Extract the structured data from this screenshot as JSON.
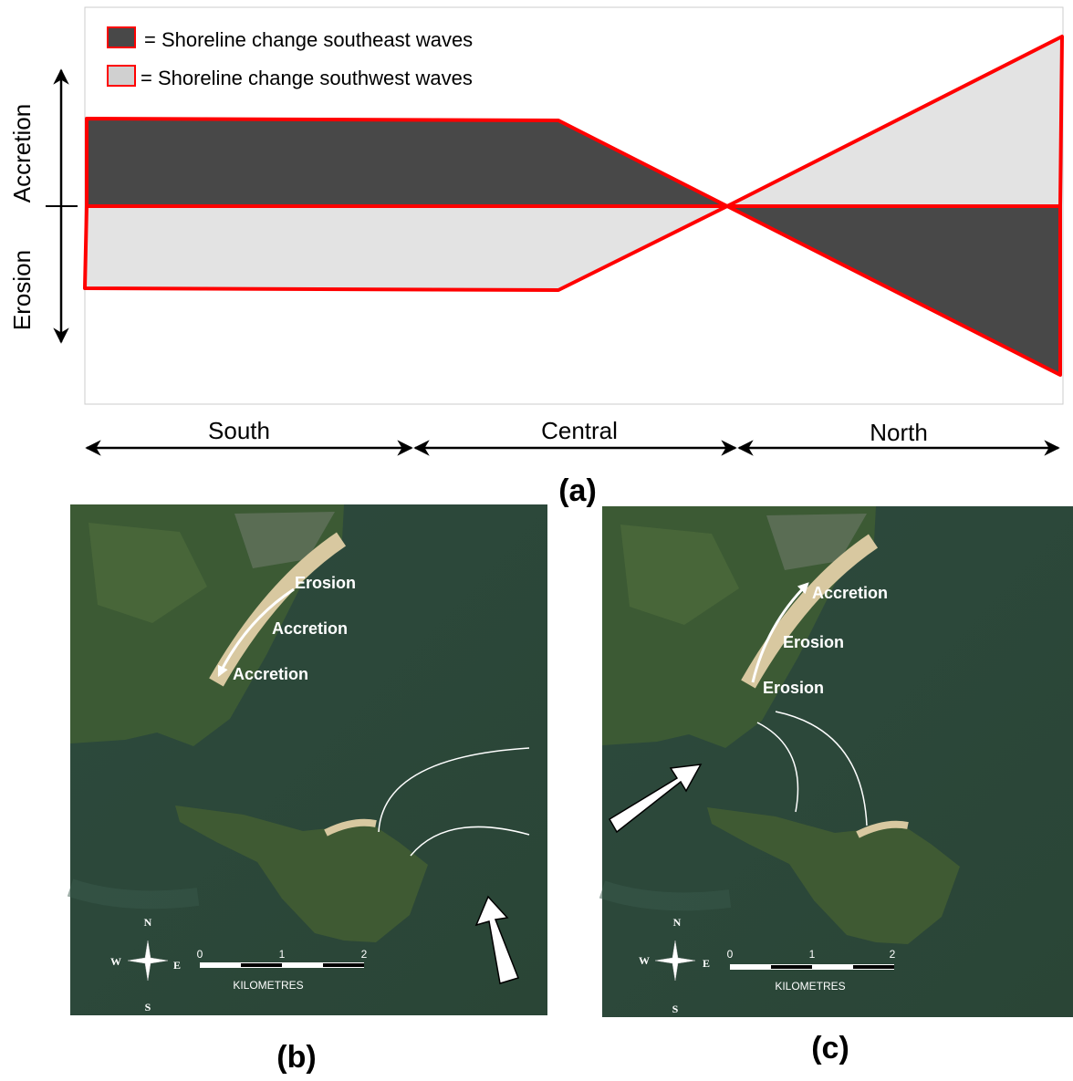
{
  "panel_a": {
    "legend": [
      "=  Shoreline change southeast waves",
      "=  Shoreline change southwest waves"
    ],
    "y_axis": {
      "top": "Accretion",
      "bottom": "Erosion"
    },
    "zones": [
      "South",
      "Central",
      "North"
    ],
    "label": "(a)"
  },
  "panel_b": {
    "annotations": [
      "Erosion",
      "Accretion",
      "Accretion"
    ],
    "compass": {
      "n": "N",
      "s": "S",
      "e": "E",
      "w": "W"
    },
    "scale": {
      "ticks": [
        "0",
        "1",
        "2"
      ],
      "unit": "KILOMETRES"
    },
    "label": "(b)"
  },
  "panel_c": {
    "annotations": [
      "Accretion",
      "Erosion",
      "Erosion"
    ],
    "compass": {
      "n": "N",
      "s": "S",
      "e": "E",
      "w": "W"
    },
    "scale": {
      "ticks": [
        "0",
        "1",
        "2"
      ],
      "unit": "KILOMETRES"
    },
    "label": "(c)"
  }
}
